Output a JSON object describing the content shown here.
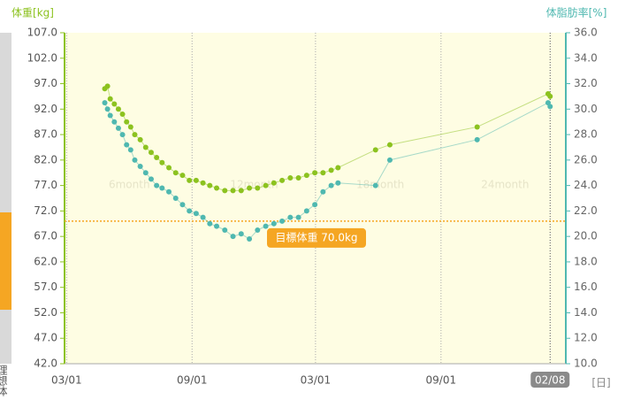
{
  "chart_data": {
    "type": "scatter",
    "y_title": "体重[kg]",
    "y2_title": "体脂肪率[%]",
    "x_unit": "[日]",
    "sidebar_label": "理想体",
    "xlim": [
      -3,
      732
    ],
    "xticks": [
      {
        "value": 0,
        "label": "03/01"
      },
      {
        "value": 184,
        "label": "09/01"
      },
      {
        "value": 365,
        "label": "03/01"
      },
      {
        "value": 549,
        "label": "09/01"
      },
      {
        "value": 709,
        "label": "02/08"
      }
    ],
    "ylim": [
      42,
      107
    ],
    "yticks": [
      {
        "value": 42,
        "label": "42.0"
      },
      {
        "value": 47,
        "label": "47.0"
      },
      {
        "value": 52,
        "label": "52.0"
      },
      {
        "value": 57,
        "label": "57.0"
      },
      {
        "value": 62,
        "label": "62.0"
      },
      {
        "value": 67,
        "label": "67.0"
      },
      {
        "value": 72,
        "label": "72.0"
      },
      {
        "value": 77,
        "label": "77.0"
      },
      {
        "value": 82,
        "label": "82.0"
      },
      {
        "value": 87,
        "label": "87.0"
      },
      {
        "value": 92,
        "label": "92.0"
      },
      {
        "value": 97,
        "label": "97.0"
      },
      {
        "value": 102,
        "label": "102.0"
      },
      {
        "value": 107,
        "label": "107.0"
      }
    ],
    "y2lim": [
      10,
      36
    ],
    "y2ticks": [
      {
        "value": 10,
        "label": "10.0"
      },
      {
        "value": 12,
        "label": "12.0"
      },
      {
        "value": 14,
        "label": "14.0"
      },
      {
        "value": 16,
        "label": "16.0"
      },
      {
        "value": 18,
        "label": "18.0"
      },
      {
        "value": 20,
        "label": "20.0"
      },
      {
        "value": 22,
        "label": "22.0"
      },
      {
        "value": 24,
        "label": "24.0"
      },
      {
        "value": 26,
        "label": "26.0"
      },
      {
        "value": 28,
        "label": "28.0"
      },
      {
        "value": 30,
        "label": "30.0"
      },
      {
        "value": 32,
        "label": "32.0"
      },
      {
        "value": 34,
        "label": "34.0"
      },
      {
        "value": 36,
        "label": "36.0"
      }
    ],
    "period_labels": [
      {
        "x": 92,
        "label": "6month"
      },
      {
        "x": 275,
        "label": "12month"
      },
      {
        "x": 460,
        "label": "18month"
      },
      {
        "x": 643,
        "label": "24month"
      }
    ],
    "target": {
      "value": 70,
      "label": "目標体重 70.0kg",
      "color": "#f5a623"
    },
    "x": [
      56,
      60,
      64,
      70,
      76,
      82,
      88,
      94,
      100,
      108,
      116,
      124,
      132,
      140,
      150,
      160,
      170,
      180,
      190,
      200,
      210,
      220,
      232,
      244,
      256,
      268,
      280,
      292,
      304,
      316,
      328,
      340,
      352,
      364,
      376,
      388,
      398,
      453,
      474,
      602,
      706,
      709
    ],
    "series": [
      {
        "axis": "y",
        "color": "#8cc21f",
        "values": [
          96,
          96.5,
          94,
          93,
          92,
          91,
          89.5,
          88.5,
          87,
          86,
          84.5,
          83.5,
          82.5,
          81.5,
          80.5,
          79.5,
          79,
          78,
          78,
          77.5,
          77,
          76.5,
          76,
          76,
          76,
          76.5,
          76.5,
          77,
          77.5,
          78,
          78.5,
          78.5,
          79,
          79.5,
          79.5,
          80,
          80.5,
          84,
          85,
          88.5,
          95,
          94.5
        ]
      },
      {
        "axis": "y2",
        "color": "#4fb8b0",
        "values": [
          30.5,
          30,
          29.5,
          29,
          28.5,
          28,
          27.2,
          26.8,
          26,
          25.5,
          25,
          24.5,
          24,
          23.8,
          23.5,
          23,
          22.5,
          22,
          21.8,
          21.5,
          21,
          20.8,
          20.5,
          20,
          20.2,
          19.8,
          20.5,
          20.8,
          21,
          21.2,
          21.5,
          21.5,
          22,
          22.5,
          23.5,
          24,
          24.2,
          24,
          26,
          27.6,
          30.5,
          30.2
        ]
      }
    ]
  }
}
